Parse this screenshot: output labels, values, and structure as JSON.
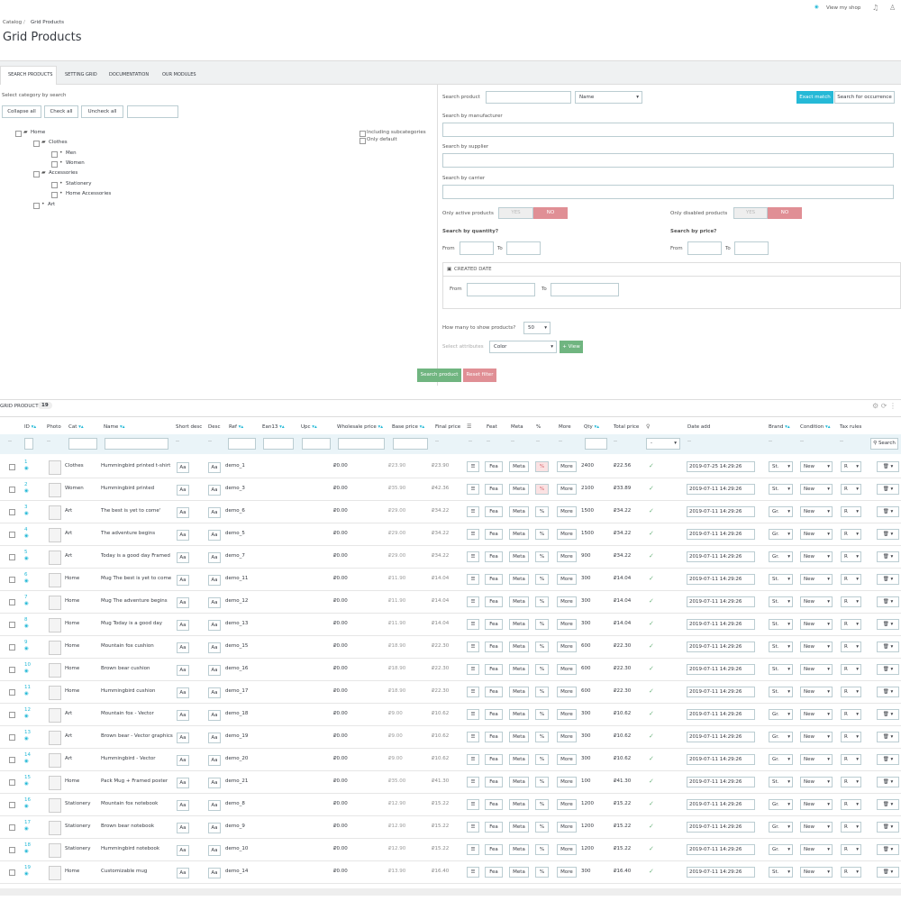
{
  "header": {
    "breadcrumb": [
      "Catalog",
      "Grid Products"
    ],
    "title": "Grid Products",
    "view_shop": "View my shop"
  },
  "tabs": [
    "SEARCH PRODUCTS",
    "SETTING GRID",
    "DOCUMENTATION",
    "OUR MODULES"
  ],
  "category_panel": {
    "label": "Select category by search",
    "buttons": [
      "Collapse all",
      "Check all",
      "Uncheck all"
    ],
    "tree": [
      "Home",
      "Clothes",
      "Men",
      "Women",
      "Accessories",
      "Stationery",
      "Home Accessories",
      "Art"
    ],
    "options": [
      "Including subcategories",
      "Only default"
    ]
  },
  "search_panel": {
    "search_product": "Search product",
    "search_field": "Name",
    "exact_match": "Exact match",
    "occurrence": "Search for occurrence",
    "manufacturer": "Search by manufacturer",
    "supplier": "Search by supplier",
    "carrier": "Search by carrier",
    "only_active": "Only active products",
    "only_disabled": "Only disabled products",
    "yes": "YES",
    "no": "NO",
    "by_quantity": "Search by quantity?",
    "by_price": "Search by price?",
    "from": "From",
    "to": "To",
    "created_date": "CREATED DATE",
    "how_many": "How many to show products?",
    "how_many_value": "50",
    "select_attributes": "Select attributes",
    "attribute": "Color",
    "view": "View"
  },
  "actions": [
    "Search product",
    "Reset filter"
  ],
  "grid": {
    "title": "GRID PRODUCTS",
    "count": "19",
    "columns": [
      "ID",
      "Photo",
      "Cat",
      "Name",
      "Short desc",
      "Desc",
      "Ref",
      "Ean13",
      "Upc",
      "Wholesale price",
      "Base price",
      "Final price",
      "Feat",
      "Meta",
      "%",
      "More",
      "Qty",
      "Total price",
      "Date add",
      "Brand",
      "Condition",
      "Tax rules"
    ],
    "filter_placeholder": "--",
    "filter_select": "-",
    "search_button": "Search",
    "row_buttons": {
      "aa": "Aa",
      "feat": "Fea",
      "meta": "Meta",
      "pct": "%",
      "more": "More"
    },
    "rows": [
      {
        "id": "1",
        "category": "Clothes",
        "name": "Hummingbird printed t-shirt",
        "ref": "demo_1",
        "wholesale": "₽0.00",
        "base": "₽23.90",
        "final": "₽23.90",
        "qty": "2400",
        "total": "₽22.56",
        "date": "2019-07-25 14:29:26",
        "brand": "St.",
        "condition": "New",
        "tax": "R"
      },
      {
        "id": "2",
        "category": "Women",
        "name": "Hummingbird printed",
        "ref": "demo_3",
        "wholesale": "₽0.00",
        "base": "₽35.90",
        "final": "₽42.36",
        "qty": "2100",
        "total": "₽33.89",
        "date": "2019-07-11 14:29:26",
        "brand": "St.",
        "condition": "New",
        "tax": "R"
      },
      {
        "id": "3",
        "category": "Art",
        "name": "The best is yet to come'",
        "ref": "demo_6",
        "wholesale": "₽0.00",
        "base": "₽29.00",
        "final": "₽34.22",
        "qty": "1500",
        "total": "₽34.22",
        "date": "2019-07-11 14:29:26",
        "brand": "Gr.",
        "condition": "New",
        "tax": "R"
      },
      {
        "id": "4",
        "category": "Art",
        "name": "The adventure begins",
        "ref": "demo_5",
        "wholesale": "₽0.00",
        "base": "₽29.00",
        "final": "₽34.22",
        "qty": "1500",
        "total": "₽34.22",
        "date": "2019-07-11 14:29:26",
        "brand": "Gr.",
        "condition": "New",
        "tax": "R"
      },
      {
        "id": "5",
        "category": "Art",
        "name": "Today is a good day Framed",
        "ref": "demo_7",
        "wholesale": "₽0.00",
        "base": "₽29.00",
        "final": "₽34.22",
        "qty": "900",
        "total": "₽34.22",
        "date": "2019-07-11 14:29:26",
        "brand": "Gr.",
        "condition": "New",
        "tax": "R"
      },
      {
        "id": "6",
        "category": "Home",
        "name": "Mug The best is yet to come",
        "ref": "demo_11",
        "wholesale": "₽0.00",
        "base": "₽11.90",
        "final": "₽14.04",
        "qty": "300",
        "total": "₽14.04",
        "date": "2019-07-11 14:29:26",
        "brand": "St.",
        "condition": "New",
        "tax": "R"
      },
      {
        "id": "7",
        "category": "Home",
        "name": "Mug The adventure begins",
        "ref": "demo_12",
        "wholesale": "₽0.00",
        "base": "₽11.90",
        "final": "₽14.04",
        "qty": "300",
        "total": "₽14.04",
        "date": "2019-07-11 14:29:26",
        "brand": "St.",
        "condition": "New",
        "tax": "R"
      },
      {
        "id": "8",
        "category": "Home",
        "name": "Mug Today is a good day",
        "ref": "demo_13",
        "wholesale": "₽0.00",
        "base": "₽11.90",
        "final": "₽14.04",
        "qty": "300",
        "total": "₽14.04",
        "date": "2019-07-11 14:29:26",
        "brand": "St.",
        "condition": "New",
        "tax": "R"
      },
      {
        "id": "9",
        "category": "Home",
        "name": "Mountain fox cushion",
        "ref": "demo_15",
        "wholesale": "₽0.00",
        "base": "₽18.90",
        "final": "₽22.30",
        "qty": "600",
        "total": "₽22.30",
        "date": "2019-07-11 14:29:26",
        "brand": "St.",
        "condition": "New",
        "tax": "R"
      },
      {
        "id": "10",
        "category": "Home",
        "name": "Brown bear cushion",
        "ref": "demo_16",
        "wholesale": "₽0.00",
        "base": "₽18.90",
        "final": "₽22.30",
        "qty": "600",
        "total": "₽22.30",
        "date": "2019-07-11 14:29:26",
        "brand": "St.",
        "condition": "New",
        "tax": "R"
      },
      {
        "id": "11",
        "category": "Home",
        "name": "Hummingbird cushion",
        "ref": "demo_17",
        "wholesale": "₽0.00",
        "base": "₽18.90",
        "final": "₽22.30",
        "qty": "600",
        "total": "₽22.30",
        "date": "2019-07-11 14:29:26",
        "brand": "St.",
        "condition": "New",
        "tax": "R"
      },
      {
        "id": "12",
        "category": "Art",
        "name": "Mountain fox - Vector",
        "ref": "demo_18",
        "wholesale": "₽0.00",
        "base": "₽9.00",
        "final": "₽10.62",
        "qty": "300",
        "total": "₽10.62",
        "date": "2019-07-11 14:29:26",
        "brand": "Gr.",
        "condition": "New",
        "tax": "R"
      },
      {
        "id": "13",
        "category": "Art",
        "name": "Brown bear - Vector graphics",
        "ref": "demo_19",
        "wholesale": "₽0.00",
        "base": "₽9.00",
        "final": "₽10.62",
        "qty": "300",
        "total": "₽10.62",
        "date": "2019-07-11 14:29:26",
        "brand": "Gr.",
        "condition": "New",
        "tax": "R"
      },
      {
        "id": "14",
        "category": "Art",
        "name": "Hummingbird - Vector",
        "ref": "demo_20",
        "wholesale": "₽0.00",
        "base": "₽9.00",
        "final": "₽10.62",
        "qty": "300",
        "total": "₽10.62",
        "date": "2019-07-11 14:29:26",
        "brand": "Gr.",
        "condition": "New",
        "tax": "R"
      },
      {
        "id": "15",
        "category": "Home",
        "name": "Pack Mug + Framed poster",
        "ref": "demo_21",
        "wholesale": "₽0.00",
        "base": "₽35.00",
        "final": "₽41.30",
        "qty": "100",
        "total": "₽41.30",
        "date": "2019-07-11 14:29:26",
        "brand": "St.",
        "condition": "New",
        "tax": "R"
      },
      {
        "id": "16",
        "category": "Stationery",
        "name": "Mountain fox notebook",
        "ref": "demo_8",
        "wholesale": "₽0.00",
        "base": "₽12.90",
        "final": "₽15.22",
        "qty": "1200",
        "total": "₽15.22",
        "date": "2019-07-11 14:29:26",
        "brand": "Gr.",
        "condition": "New",
        "tax": "R"
      },
      {
        "id": "17",
        "category": "Stationery",
        "name": "Brown bear notebook",
        "ref": "demo_9",
        "wholesale": "₽0.00",
        "base": "₽12.90",
        "final": "₽15.22",
        "qty": "1200",
        "total": "₽15.22",
        "date": "2019-07-11 14:29:26",
        "brand": "Gr.",
        "condition": "New",
        "tax": "R"
      },
      {
        "id": "18",
        "category": "Stationery",
        "name": "Hummingbird notebook",
        "ref": "demo_10",
        "wholesale": "₽0.00",
        "base": "₽12.90",
        "final": "₽15.22",
        "qty": "1200",
        "total": "₽15.22",
        "date": "2019-07-11 14:29:26",
        "brand": "Gr.",
        "condition": "New",
        "tax": "R"
      },
      {
        "id": "19",
        "category": "Home",
        "name": "Customizable mug",
        "ref": "demo_14",
        "wholesale": "₽0.00",
        "base": "₽13.90",
        "final": "₽16.40",
        "qty": "300",
        "total": "₽16.40",
        "date": "2019-07-11 14:29:26",
        "brand": "St.",
        "condition": "New",
        "tax": "R"
      }
    ]
  }
}
